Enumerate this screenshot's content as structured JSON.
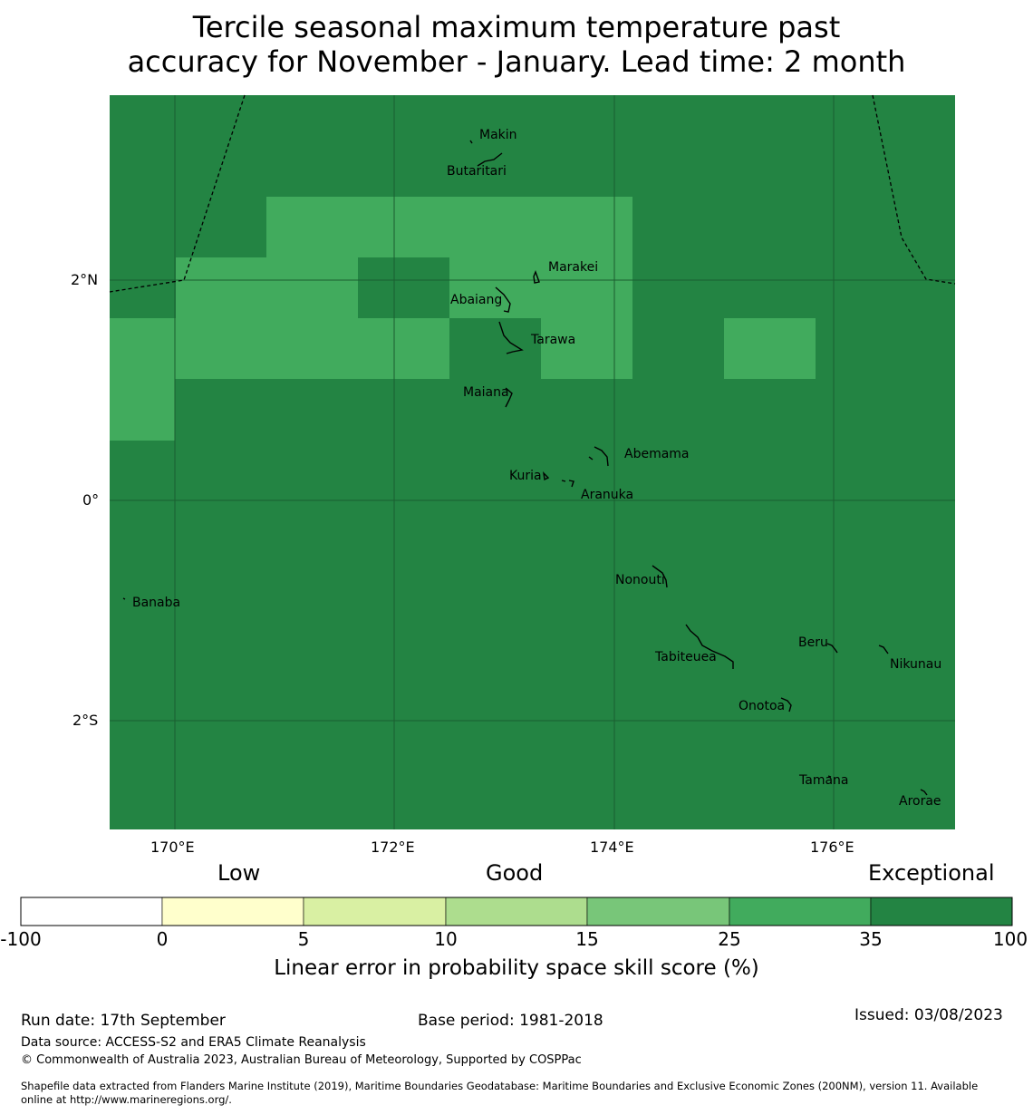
{
  "title": {
    "line1": "Tercile seasonal maximum temperature past",
    "line2": "accuracy for November - January. Lead time: 2 month"
  },
  "map": {
    "background_color": "#238443",
    "highlight_color": "#41ab5d",
    "lon_ticks": [
      "170°E",
      "172°E",
      "174°E",
      "176°E"
    ],
    "lat_ticks": [
      "2°N",
      "0°",
      "2°S"
    ],
    "places": [
      "Makin",
      "Butaritari",
      "Marakei",
      "Abaiang",
      "Tarawa",
      "Maiana",
      "Abemama",
      "Kuria",
      "Aranuka",
      "Banaba",
      "Nonouti",
      "Beru",
      "Tabiteuea",
      "Nikunau",
      "Onotoa",
      "Tamana",
      "Arorae"
    ]
  },
  "colorbar": {
    "categories": [
      "Low",
      "Good",
      "Exceptional"
    ],
    "ticks": [
      "-100",
      "0",
      "5",
      "10",
      "15",
      "25",
      "35",
      "100"
    ],
    "colors": [
      "#ffffff",
      "#ffffcc",
      "#d9f0a3",
      "#addd8e",
      "#78c679",
      "#41ab5d",
      "#238443"
    ],
    "label": "Linear error in probability space skill score (%)"
  },
  "footer": {
    "run_date": "Run date: 17th September",
    "base_period": "Base period: 1981-2018",
    "issued": "Issued: 03/08/2023",
    "data_source": "Data source: ACCESS-S2 and ERA5 Climate Reanalysis",
    "copyright": "© Commonwealth of Australia 2023, Australian Bureau of Meteorology, Supported by COSPPac",
    "shapefile_line1": "Shapefile data extracted from Flanders Marine Institute (2019), Maritime Boundaries Geodatabase: Maritime Boundaries and Exclusive Economic Zones (200NM), version 11. Available",
    "shapefile_line2": "online at http://www.marineregions.org/."
  }
}
